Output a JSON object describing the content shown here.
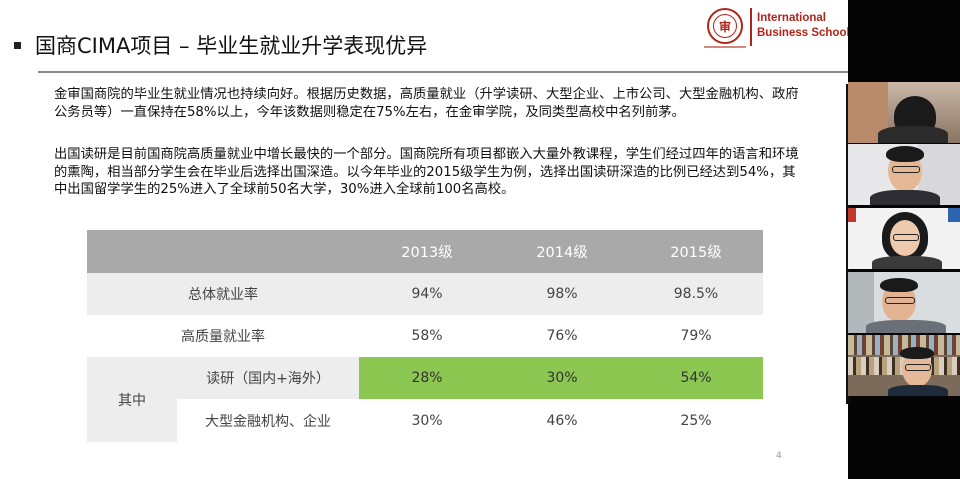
{
  "slide": {
    "title": "国商CIMA项目 – 毕业生就业升学表现优异",
    "logo": {
      "line1": "International",
      "line2": "Business School",
      "seal_glyph": "审"
    },
    "paragraphs": [
      "金审国商院的毕业生就业情况也持续向好。根据历史数据，高质量就业（升学读研、大型企业、上市公司、大型金融机构、政府公务员等）一直保持在58%以上，今年该数据则稳定在75%左右，在金审学院，及同类型高校中名列前茅。",
      "出国读研是目前国商院高质量就业中增长最快的一个部分。国商院所有项目都嵌入大量外教课程，学生们经过四年的语言和环境的熏陶，相当部分学生会在毕业后选择出国深造。以今年毕业的2015级学生为例，选择出国读研深造的比例已经达到54%，其中出国留学学生的25%进入了全球前50名大学，30%进入全球前100名高校。"
    ],
    "table": {
      "headers": [
        "",
        "2013级",
        "2014级",
        "2015级"
      ],
      "rows": [
        {
          "label": "总体就业率",
          "values": [
            "94%",
            "98%",
            "98.5%"
          ]
        },
        {
          "label": "高质量就业率",
          "values": [
            "58%",
            "76%",
            "79%"
          ]
        }
      ],
      "group_label": "其中",
      "sub_rows": [
        {
          "label": "读研（国内+海外）",
          "values": [
            "28%",
            "30%",
            "54%"
          ],
          "highlight": "#8cc751"
        },
        {
          "label": "大型金融机构、企业",
          "values": [
            "30%",
            "46%",
            "25%"
          ]
        }
      ]
    },
    "page_number": "4"
  },
  "colors": {
    "brand_red": "#b1241a",
    "header_gray": "#a9a9a9",
    "row_gray": "#ededed",
    "highlight_green": "#8cc751"
  },
  "video_participants": [
    {
      "id": "participant-1"
    },
    {
      "id": "participant-2"
    },
    {
      "id": "participant-3"
    },
    {
      "id": "participant-4"
    },
    {
      "id": "participant-5"
    }
  ]
}
